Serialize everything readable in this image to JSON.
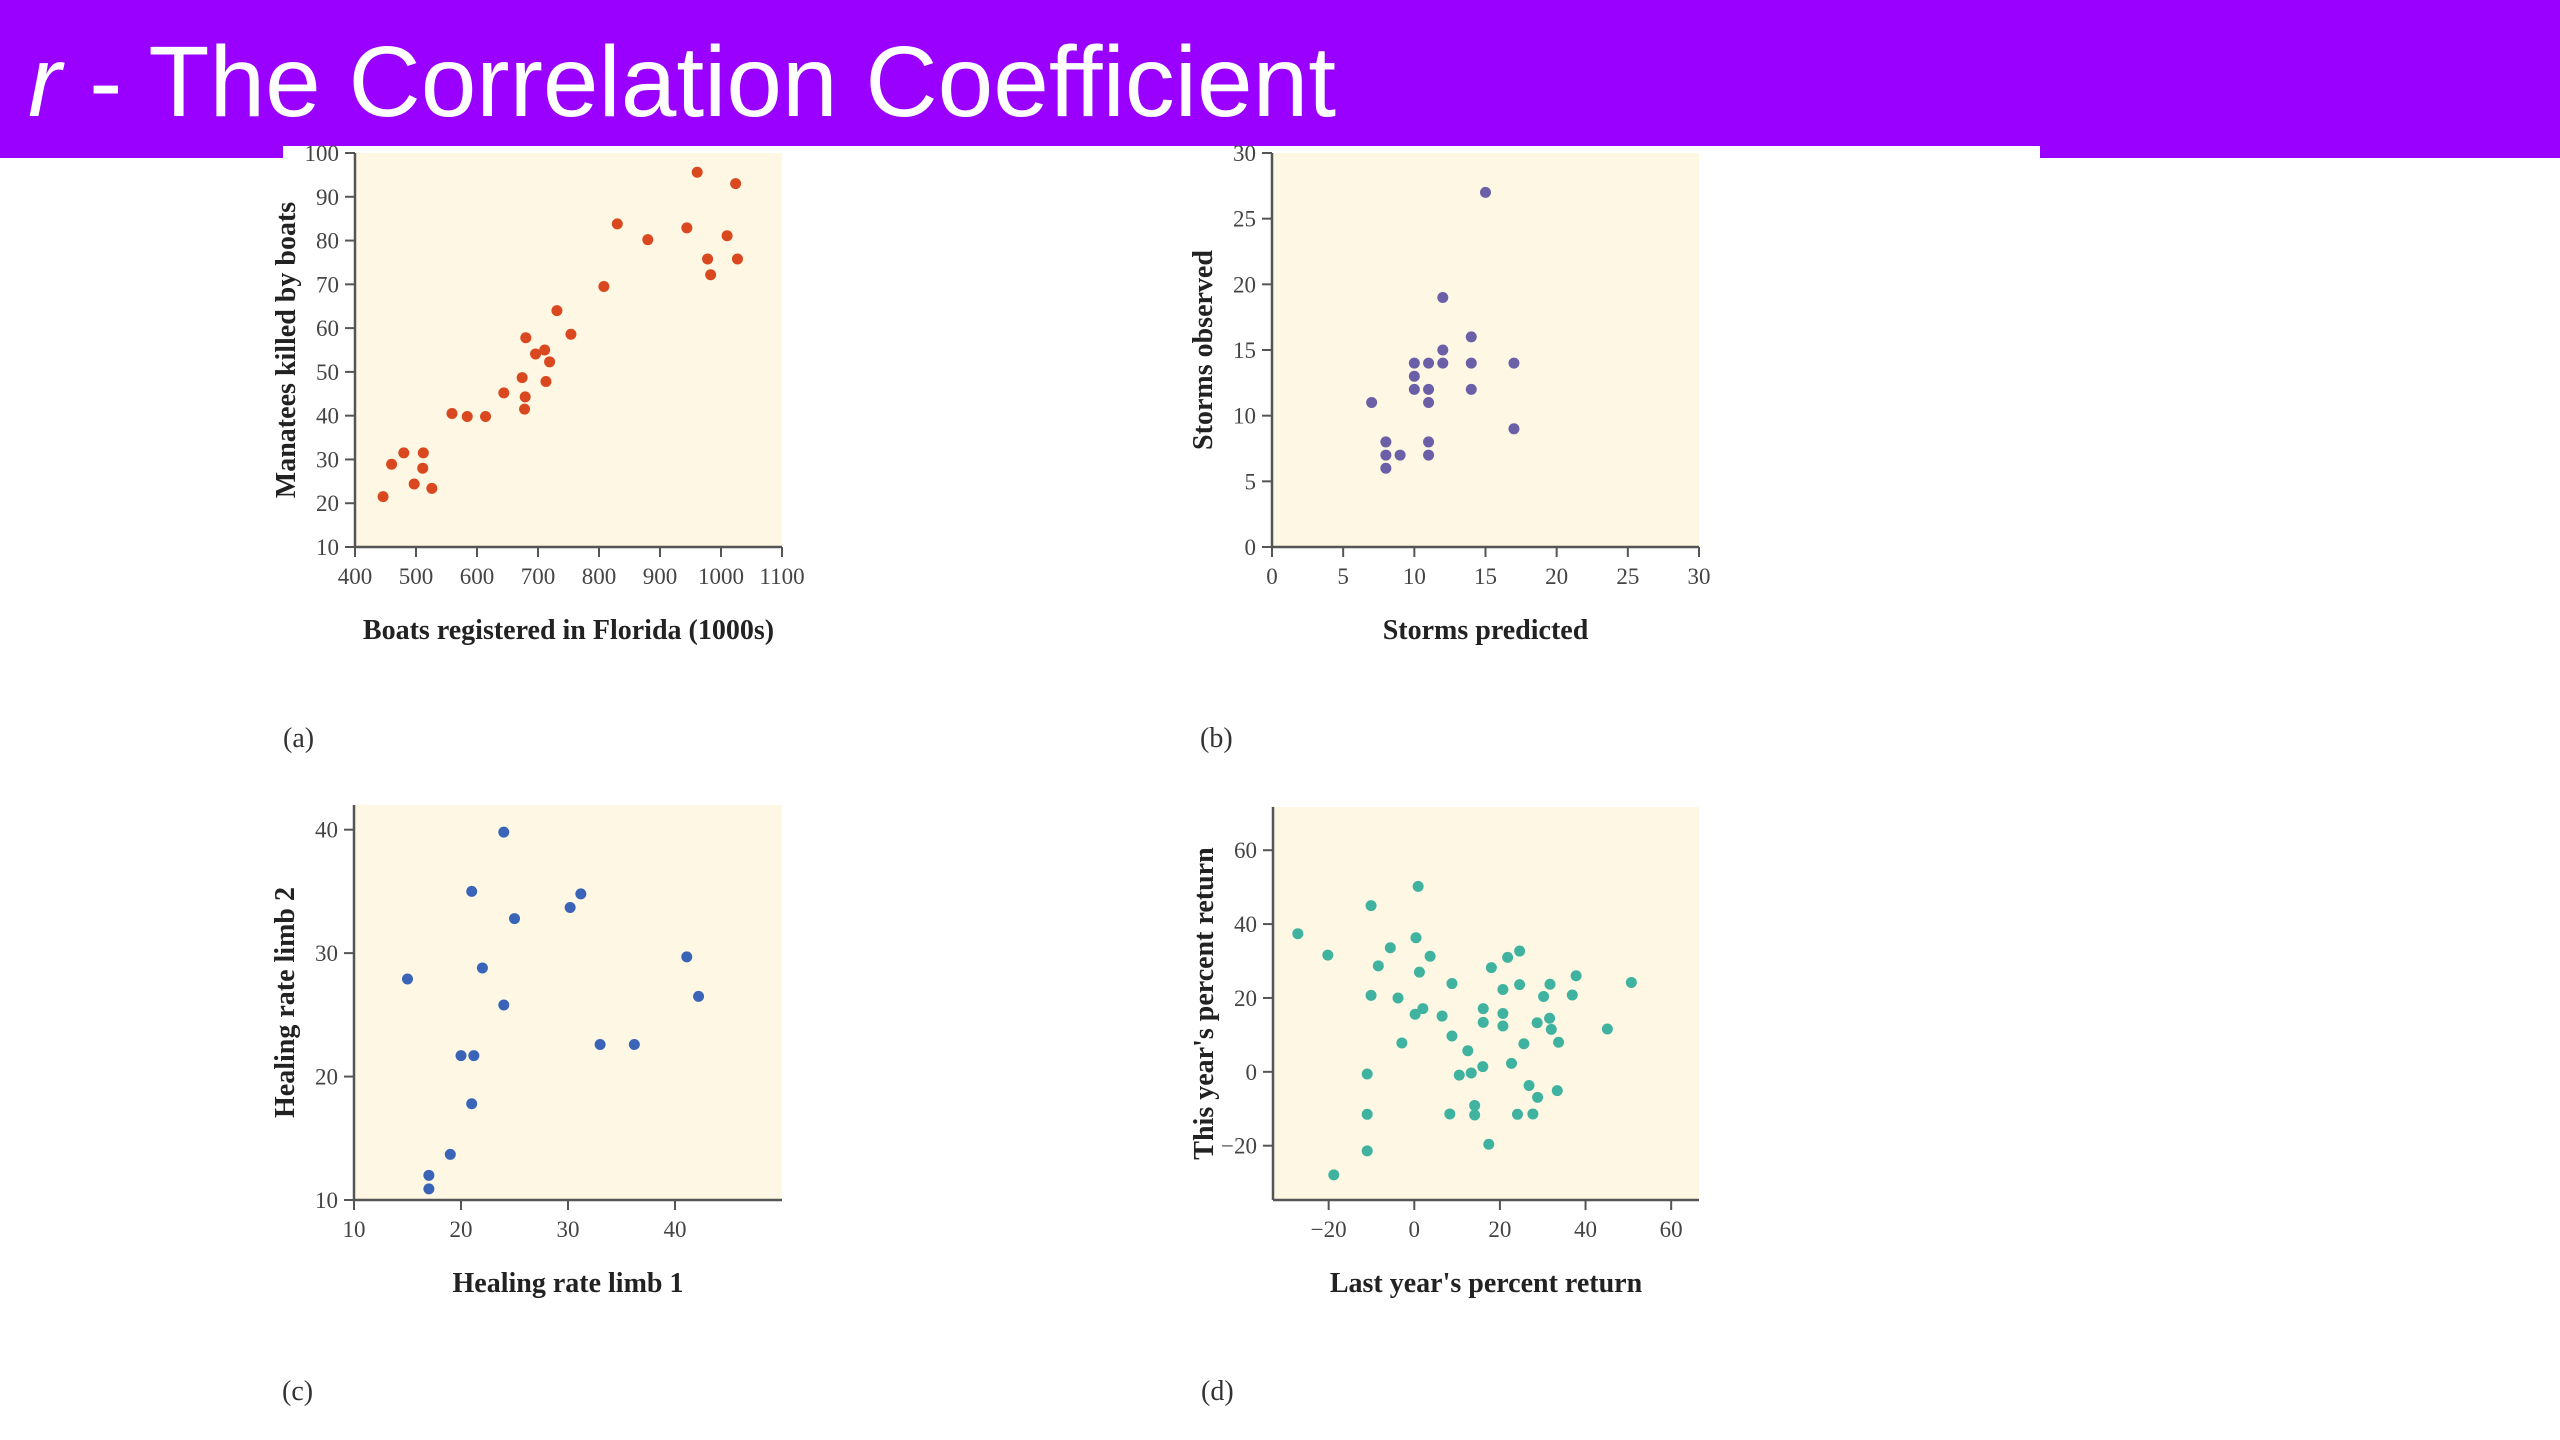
{
  "slide": {
    "title_var": "r",
    "title_rest": " - The Correlation Coefficient",
    "title_color": "#9900ff"
  },
  "chart_data": [
    {
      "type": "scatter",
      "panel_label": "(a)",
      "xlabel": "Boats registered in Florida (1000s)",
      "ylabel": "Manatees killed by boats",
      "xlim": [
        400,
        1100
      ],
      "ylim": [
        10,
        100
      ],
      "xticks": [
        400,
        500,
        600,
        700,
        800,
        900,
        1000,
        1100
      ],
      "yticks": [
        10,
        20,
        30,
        40,
        50,
        60,
        70,
        80,
        90,
        100
      ],
      "color": "#d9481f",
      "background": "#fdf7e4",
      "grid": false,
      "points": [
        [
          446,
          21.5
        ],
        [
          460,
          28.9
        ],
        [
          480,
          31.5
        ],
        [
          512,
          31.5
        ],
        [
          511,
          28
        ],
        [
          497,
          24.4
        ],
        [
          526,
          23.4
        ],
        [
          559,
          40.5
        ],
        [
          584,
          39.8
        ],
        [
          614,
          39.8
        ],
        [
          644,
          45.2
        ],
        [
          674,
          48.7
        ],
        [
          679,
          44.3
        ],
        [
          678,
          41.5
        ],
        [
          680,
          57.8
        ],
        [
          696,
          54.1
        ],
        [
          711,
          55
        ],
        [
          719,
          52.3
        ],
        [
          713,
          47.8
        ],
        [
          731,
          64
        ],
        [
          754,
          58.6
        ],
        [
          808,
          69.5
        ],
        [
          830,
          83.8
        ],
        [
          880,
          80.2
        ],
        [
          944,
          82.9
        ],
        [
          961,
          95.6
        ],
        [
          978,
          75.8
        ],
        [
          983,
          72.2
        ],
        [
          1010,
          81.1
        ],
        [
          1024,
          93
        ],
        [
          1027,
          75.8
        ]
      ]
    },
    {
      "type": "scatter",
      "panel_label": "(b)",
      "xlabel": "Storms predicted",
      "ylabel": "Storms observed",
      "xlim": [
        0,
        30
      ],
      "ylim": [
        0,
        30
      ],
      "xticks": [
        0,
        5,
        10,
        15,
        20,
        25,
        30
      ],
      "yticks": [
        0,
        5,
        10,
        15,
        20,
        25,
        30
      ],
      "color": "#6b5fa8",
      "background": "#fdf7e4",
      "grid": false,
      "points": [
        [
          15,
          27
        ],
        [
          12,
          19
        ],
        [
          14,
          16
        ],
        [
          12,
          15
        ],
        [
          12,
          14
        ],
        [
          10,
          14
        ],
        [
          10,
          13
        ],
        [
          10,
          12
        ],
        [
          11,
          14
        ],
        [
          11,
          12
        ],
        [
          11,
          11
        ],
        [
          14,
          14
        ],
        [
          14,
          12
        ],
        [
          17,
          14
        ],
        [
          17,
          9
        ],
        [
          7,
          11
        ],
        [
          8,
          8
        ],
        [
          8,
          7
        ],
        [
          9,
          7
        ],
        [
          8,
          6
        ],
        [
          11,
          8
        ],
        [
          11,
          7
        ]
      ]
    },
    {
      "type": "scatter",
      "panel_label": "(c)",
      "xlabel": "Healing rate limb 1",
      "ylabel": "Healing rate limb 2",
      "xlim": [
        10,
        50
      ],
      "ylim": [
        10,
        42
      ],
      "xticks": [
        10,
        20,
        30,
        40
      ],
      "yticks": [
        10,
        20,
        30,
        40
      ],
      "color": "#3a64b8",
      "background": "#fdf7e4",
      "grid": false,
      "points": [
        [
          24,
          39.8
        ],
        [
          21,
          35
        ],
        [
          31.2,
          34.8
        ],
        [
          30.2,
          33.7
        ],
        [
          25,
          32.8
        ],
        [
          41.1,
          29.7
        ],
        [
          15,
          27.9
        ],
        [
          22,
          28.8
        ],
        [
          24,
          25.8
        ],
        [
          42.2,
          26.5
        ],
        [
          33,
          22.6
        ],
        [
          36.2,
          22.6
        ],
        [
          20,
          21.7
        ],
        [
          21.2,
          21.7
        ],
        [
          21,
          17.8
        ],
        [
          19,
          13.7
        ],
        [
          17,
          12
        ],
        [
          17,
          10.9
        ]
      ]
    },
    {
      "type": "scatter",
      "panel_label": "(d)",
      "xlabel": "Last year's percent return",
      "ylabel": "This year's percent return",
      "xlim": [
        -33,
        66.5
      ],
      "ylim": [
        -34.7,
        71.7
      ],
      "xticks": [
        -20,
        0,
        20,
        40,
        60
      ],
      "yticks": [
        -20,
        0,
        20,
        40,
        60
      ],
      "color": "#3fb3a0",
      "background": "#fdf7e4",
      "grid": false,
      "points": [
        [
          -27.2,
          37.4
        ],
        [
          -20.2,
          31.6
        ],
        [
          -10.1,
          45
        ],
        [
          -10.1,
          20.7
        ],
        [
          -11,
          -0.6
        ],
        [
          -11,
          -11.5
        ],
        [
          -11,
          -21.4
        ],
        [
          -18.8,
          -27.9
        ],
        [
          -8.4,
          28.7
        ],
        [
          -5.6,
          33.6
        ],
        [
          -3.8,
          20
        ],
        [
          -2.9,
          7.8
        ],
        [
          0.9,
          50.2
        ],
        [
          0.4,
          36.3
        ],
        [
          1.2,
          27
        ],
        [
          0.2,
          15.6
        ],
        [
          2,
          17.1
        ],
        [
          3.7,
          31.3
        ],
        [
          6.5,
          15.1
        ],
        [
          8.8,
          23.9
        ],
        [
          8.8,
          9.7
        ],
        [
          8.3,
          -11.4
        ],
        [
          10.5,
          -0.9
        ],
        [
          12.5,
          5.7
        ],
        [
          13.3,
          -0.3
        ],
        [
          14.1,
          -9.1
        ],
        [
          14.1,
          -11.7
        ],
        [
          16,
          1.4
        ],
        [
          16.1,
          17.1
        ],
        [
          16.1,
          13.4
        ],
        [
          17.4,
          -19.6
        ],
        [
          18,
          28.2
        ],
        [
          20.7,
          22.3
        ],
        [
          20.7,
          15.8
        ],
        [
          20.7,
          12.4
        ],
        [
          21.8,
          31
        ],
        [
          22.7,
          2.3
        ],
        [
          24.1,
          -11.5
        ],
        [
          24.6,
          23.6
        ],
        [
          24.6,
          32.7
        ],
        [
          25.6,
          7.6
        ],
        [
          26.8,
          -3.7
        ],
        [
          27.7,
          -11.4
        ],
        [
          28.8,
          -6.9
        ],
        [
          28.7,
          13.3
        ],
        [
          30.2,
          20.4
        ],
        [
          31.6,
          14.5
        ],
        [
          31.7,
          23.7
        ],
        [
          32,
          11.5
        ],
        [
          33.7,
          8
        ],
        [
          33.4,
          -5.1
        ],
        [
          36.9,
          20.8
        ],
        [
          37.8,
          26
        ],
        [
          45.1,
          11.6
        ],
        [
          50.7,
          24.2
        ]
      ]
    }
  ]
}
